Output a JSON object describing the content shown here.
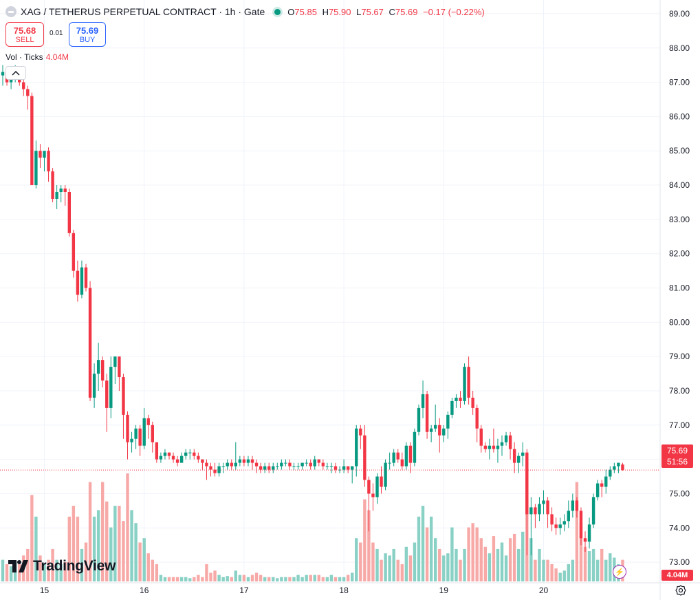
{
  "header": {
    "symbol_title": "XAG / TETHERUS PERPETUAL CONTRACT · 1h · Gate",
    "ohlc": [
      {
        "key": "O",
        "value": "75.85"
      },
      {
        "key": "H",
        "value": "75.90"
      },
      {
        "key": "L",
        "value": "75.67"
      },
      {
        "key": "C",
        "value": "75.69"
      }
    ],
    "change": "−0.17 (−0.22%)"
  },
  "trade": {
    "sell_price": "75.68",
    "sell_label": "SELL",
    "spread": "0.01",
    "buy_price": "75.69",
    "buy_label": "BUY"
  },
  "volume": {
    "label": "Vol · Ticks",
    "value": "4.04M"
  },
  "last_price": {
    "price": "75.69",
    "countdown": "51:56"
  },
  "volume_tag": "4.04M",
  "branding": {
    "logo_text": "TradingView"
  },
  "colors": {
    "up": "#089981",
    "down": "#f23645",
    "up_volume": "#89d0c5",
    "down_volume": "#f7a9a7"
  },
  "chart_data": {
    "type": "candlestick",
    "interval": "1h",
    "ylim": [
      72.4,
      89.4
    ],
    "y_ticks": [
      "73.00",
      "74.00",
      "75.00",
      "76.00",
      "77.00",
      "78.00",
      "79.00",
      "80.00",
      "81.00",
      "82.00",
      "83.00",
      "84.00",
      "85.00",
      "86.00",
      "87.00",
      "88.00",
      "89.00"
    ],
    "x_ticks": [
      "15",
      "16",
      "17",
      "18",
      "19",
      "20"
    ],
    "x_tick_positions": [
      10,
      34,
      58,
      82,
      106,
      130
    ],
    "volume_max": 5.0,
    "candles": [
      [
        87.2,
        87.5,
        86.9,
        87.3,
        1.0
      ],
      [
        87.3,
        87.4,
        86.9,
        87.0,
        0.8
      ],
      [
        87.0,
        87.2,
        86.8,
        87.2,
        0.7
      ],
      [
        87.2,
        87.5,
        87.0,
        87.3,
        0.9
      ],
      [
        87.3,
        87.4,
        86.9,
        87.0,
        0.8
      ],
      [
        87.0,
        87.1,
        86.6,
        86.8,
        1.2
      ],
      [
        86.8,
        86.9,
        86.2,
        86.6,
        1.5
      ],
      [
        86.6,
        86.7,
        84.0,
        84.0,
        4.0
      ],
      [
        84.0,
        85.3,
        83.9,
        85.0,
        3.0
      ],
      [
        85.0,
        85.2,
        84.5,
        84.8,
        1.2
      ],
      [
        84.8,
        85.0,
        84.4,
        85.0,
        0.8
      ],
      [
        85.0,
        85.1,
        84.1,
        84.4,
        1.0
      ],
      [
        84.4,
        84.5,
        83.5,
        83.6,
        1.5
      ],
      [
        83.6,
        84.0,
        83.3,
        83.8,
        1.0
      ],
      [
        83.8,
        84.0,
        83.5,
        83.9,
        0.8
      ],
      [
        83.9,
        84.0,
        83.4,
        83.8,
        0.9
      ],
      [
        83.8,
        83.9,
        82.5,
        82.6,
        3.0
      ],
      [
        82.6,
        82.7,
        81.3,
        81.5,
        3.5
      ],
      [
        81.5,
        81.8,
        80.6,
        80.8,
        3.0
      ],
      [
        80.8,
        81.8,
        80.7,
        81.6,
        1.5
      ],
      [
        81.6,
        81.7,
        80.9,
        81.0,
        1.8
      ],
      [
        81.0,
        81.2,
        77.7,
        77.8,
        4.6
      ],
      [
        77.8,
        78.8,
        77.5,
        78.5,
        3.0
      ],
      [
        78.5,
        79.4,
        78.0,
        78.9,
        3.3
      ],
      [
        78.9,
        79.0,
        78.1,
        78.3,
        4.6
      ],
      [
        78.3,
        78.5,
        76.8,
        77.5,
        3.7
      ],
      [
        77.5,
        79.0,
        77.2,
        78.7,
        2.5
      ],
      [
        78.7,
        79.0,
        78.2,
        79.0,
        3.5
      ],
      [
        79.0,
        79.0,
        78.0,
        78.4,
        3.5
      ],
      [
        78.4,
        78.5,
        76.6,
        77.3,
        2.8
      ],
      [
        77.3,
        77.4,
        76.0,
        76.5,
        5.0
      ],
      [
        76.5,
        76.8,
        76.2,
        76.6,
        3.3
      ],
      [
        76.6,
        77.0,
        76.3,
        76.9,
        2.7
      ],
      [
        76.9,
        77.0,
        76.1,
        76.4,
        1.8
      ],
      [
        76.4,
        77.5,
        76.3,
        77.2,
        2.0
      ],
      [
        77.2,
        77.3,
        76.6,
        77.0,
        1.3
      ],
      [
        77.0,
        77.1,
        76.2,
        76.5,
        1.0
      ],
      [
        76.5,
        76.5,
        75.9,
        76.0,
        0.8
      ],
      [
        76.0,
        76.2,
        75.9,
        76.1,
        0.3
      ],
      [
        76.1,
        76.3,
        76.0,
        76.2,
        0.2
      ],
      [
        76.2,
        76.2,
        76.0,
        76.1,
        0.2
      ],
      [
        76.1,
        76.2,
        75.9,
        76.0,
        0.2
      ],
      [
        76.0,
        76.1,
        75.8,
        75.9,
        0.2
      ],
      [
        75.9,
        76.2,
        75.9,
        76.1,
        0.2
      ],
      [
        76.1,
        76.3,
        76.0,
        76.2,
        0.2
      ],
      [
        76.2,
        76.3,
        76.0,
        76.2,
        0.15
      ],
      [
        76.2,
        76.3,
        76.0,
        76.1,
        0.2
      ],
      [
        76.1,
        76.2,
        75.9,
        76.0,
        0.3
      ],
      [
        76.0,
        76.0,
        75.7,
        75.9,
        0.2
      ],
      [
        75.9,
        76.0,
        75.4,
        75.8,
        0.8
      ],
      [
        75.8,
        75.9,
        75.5,
        75.7,
        0.4
      ],
      [
        75.7,
        75.9,
        75.5,
        75.6,
        0.5
      ],
      [
        75.6,
        75.9,
        75.5,
        75.8,
        0.3
      ],
      [
        75.8,
        75.9,
        75.6,
        75.8,
        0.2
      ],
      [
        75.8,
        76.0,
        75.7,
        75.9,
        0.25
      ],
      [
        75.9,
        76.0,
        75.7,
        75.8,
        0.2
      ],
      [
        75.8,
        76.5,
        75.7,
        75.9,
        0.5
      ],
      [
        75.9,
        76.1,
        75.8,
        76.0,
        0.3
      ],
      [
        76.0,
        76.1,
        75.8,
        75.9,
        0.3
      ],
      [
        75.9,
        76.1,
        75.8,
        76.0,
        0.2
      ],
      [
        76.0,
        76.1,
        75.7,
        75.9,
        0.3
      ],
      [
        75.9,
        76.0,
        75.6,
        75.8,
        0.4
      ],
      [
        75.8,
        75.9,
        75.6,
        75.7,
        0.3
      ],
      [
        75.7,
        75.9,
        75.6,
        75.8,
        0.2
      ],
      [
        75.8,
        75.9,
        75.6,
        75.7,
        0.2
      ],
      [
        75.7,
        75.9,
        75.6,
        75.8,
        0.2
      ],
      [
        75.8,
        75.9,
        75.7,
        75.8,
        0.15
      ],
      [
        75.8,
        76.0,
        75.7,
        75.9,
        0.2
      ],
      [
        75.9,
        76.0,
        75.8,
        75.9,
        0.2
      ],
      [
        75.9,
        76.0,
        75.7,
        75.8,
        0.2
      ],
      [
        75.8,
        75.9,
        75.7,
        75.8,
        0.2
      ],
      [
        75.8,
        75.9,
        75.7,
        75.8,
        0.3
      ],
      [
        75.8,
        75.9,
        75.7,
        75.9,
        0.2
      ],
      [
        75.9,
        76.0,
        75.8,
        75.9,
        0.3
      ],
      [
        75.9,
        76.0,
        75.7,
        75.8,
        0.3
      ],
      [
        75.8,
        76.1,
        75.7,
        76.0,
        0.3
      ],
      [
        76.0,
        76.0,
        75.8,
        75.9,
        0.3
      ],
      [
        75.9,
        76.0,
        75.7,
        75.8,
        0.2
      ],
      [
        75.8,
        75.9,
        75.7,
        75.8,
        0.2
      ],
      [
        75.8,
        75.9,
        75.6,
        75.8,
        0.3
      ],
      [
        75.8,
        75.9,
        75.6,
        75.7,
        0.2
      ],
      [
        75.7,
        75.8,
        75.6,
        75.7,
        0.2
      ],
      [
        75.7,
        76.0,
        75.6,
        75.8,
        0.2
      ],
      [
        75.8,
        75.8,
        75.6,
        75.7,
        0.3
      ],
      [
        75.7,
        75.8,
        75.3,
        75.8,
        0.4
      ],
      [
        75.8,
        77.0,
        75.5,
        76.9,
        2.0
      ],
      [
        76.9,
        77.0,
        76.3,
        76.7,
        1.8
      ],
      [
        76.7,
        77.0,
        75.2,
        75.4,
        3.8
      ],
      [
        75.4,
        75.5,
        73.9,
        75.0,
        3.3
      ],
      [
        75.0,
        75.3,
        74.5,
        74.9,
        1.8
      ],
      [
        74.9,
        75.6,
        74.7,
        75.5,
        1.5
      ],
      [
        75.5,
        75.8,
        75.0,
        75.2,
        1.0
      ],
      [
        75.2,
        76.0,
        75.1,
        75.9,
        1.3
      ],
      [
        75.9,
        76.2,
        75.7,
        75.9,
        1.2
      ],
      [
        75.9,
        76.3,
        75.8,
        76.2,
        1.5
      ],
      [
        76.2,
        76.3,
        75.9,
        76.0,
        1.0
      ],
      [
        76.0,
        76.2,
        75.7,
        75.8,
        0.8
      ],
      [
        75.8,
        76.5,
        75.7,
        76.4,
        1.6
      ],
      [
        76.4,
        76.5,
        75.6,
        75.9,
        1.2
      ],
      [
        75.9,
        76.9,
        75.8,
        76.8,
        1.8
      ],
      [
        76.8,
        77.6,
        76.7,
        77.5,
        3.0
      ],
      [
        77.5,
        78.3,
        77.2,
        77.9,
        3.5
      ],
      [
        77.9,
        78.0,
        76.6,
        76.8,
        2.5
      ],
      [
        76.8,
        77.0,
        76.5,
        76.9,
        3.0
      ],
      [
        76.9,
        77.6,
        76.8,
        77.0,
        2.0
      ],
      [
        77.0,
        77.2,
        76.2,
        76.7,
        1.5
      ],
      [
        76.7,
        77.0,
        76.5,
        76.9,
        1.2
      ],
      [
        76.9,
        77.4,
        76.6,
        77.3,
        1.3
      ],
      [
        77.3,
        77.8,
        77.2,
        77.7,
        2.5
      ],
      [
        77.7,
        77.9,
        77.5,
        77.8,
        1.5
      ],
      [
        77.8,
        78.0,
        77.5,
        77.7,
        1.0
      ],
      [
        77.7,
        78.8,
        77.6,
        78.7,
        1.5
      ],
      [
        78.7,
        79.0,
        77.6,
        77.8,
        2.5
      ],
      [
        77.8,
        78.0,
        77.3,
        77.5,
        2.7
      ],
      [
        77.5,
        77.6,
        76.5,
        76.9,
        2.5
      ],
      [
        76.9,
        77.0,
        76.2,
        76.4,
        2.0
      ],
      [
        76.4,
        76.5,
        76.2,
        76.3,
        1.6
      ],
      [
        76.3,
        76.6,
        76.0,
        76.4,
        1.3
      ],
      [
        76.4,
        76.9,
        76.2,
        76.3,
        2.1
      ],
      [
        76.3,
        76.6,
        75.9,
        76.4,
        1.5
      ],
      [
        76.4,
        76.7,
        76.1,
        76.5,
        1.8
      ],
      [
        76.5,
        76.8,
        76.4,
        76.7,
        1.2
      ],
      [
        76.7,
        76.8,
        76.0,
        76.3,
        2.0
      ],
      [
        76.3,
        76.5,
        75.6,
        75.9,
        2.2
      ],
      [
        75.9,
        76.2,
        75.6,
        76.1,
        1.5
      ],
      [
        76.1,
        76.5,
        75.8,
        76.2,
        2.3
      ],
      [
        76.2,
        76.3,
        73.2,
        74.4,
        5.0
      ],
      [
        74.4,
        74.9,
        73.2,
        74.6,
        2.0
      ],
      [
        74.6,
        74.7,
        74.0,
        74.4,
        1.0
      ],
      [
        74.4,
        74.9,
        74.2,
        74.7,
        1.5
      ],
      [
        74.7,
        75.1,
        74.4,
        74.8,
        1.0
      ],
      [
        74.8,
        74.9,
        74.0,
        74.4,
        1.0
      ],
      [
        74.4,
        74.6,
        73.9,
        74.1,
        0.8
      ],
      [
        74.1,
        74.3,
        73.8,
        74.0,
        0.6
      ],
      [
        74.0,
        74.3,
        73.8,
        74.1,
        0.4
      ],
      [
        74.1,
        74.4,
        73.9,
        74.2,
        0.5
      ],
      [
        74.2,
        74.8,
        74.0,
        74.5,
        0.8
      ],
      [
        74.5,
        75.0,
        74.3,
        74.8,
        1.0
      ],
      [
        74.8,
        74.9,
        74.3,
        74.5,
        4.6
      ],
      [
        74.5,
        74.6,
        73.5,
        73.7,
        2.7
      ],
      [
        73.7,
        73.9,
        73.3,
        73.6,
        1.6
      ],
      [
        73.6,
        74.3,
        73.4,
        74.1,
        1.4
      ],
      [
        74.1,
        75.0,
        74.0,
        74.9,
        1.5
      ],
      [
        74.9,
        75.4,
        74.8,
        75.3,
        1.0
      ],
      [
        75.3,
        75.4,
        74.9,
        75.2,
        1.5
      ],
      [
        75.2,
        75.7,
        75.0,
        75.5,
        1.0
      ],
      [
        75.5,
        75.8,
        75.4,
        75.7,
        1.3
      ],
      [
        75.7,
        75.9,
        75.6,
        75.8,
        1.1
      ],
      [
        75.8,
        75.9,
        75.6,
        75.9,
        0.8
      ],
      [
        75.85,
        75.9,
        75.67,
        75.69,
        1.0
      ]
    ]
  }
}
